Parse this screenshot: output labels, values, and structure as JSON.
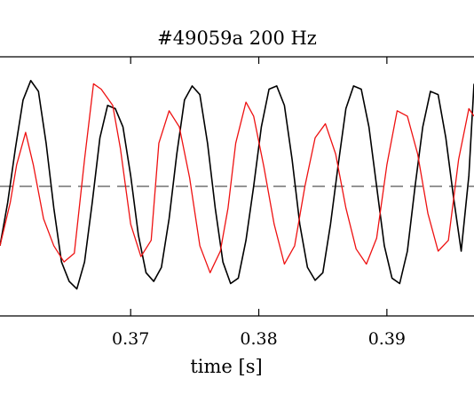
{
  "chart_data": {
    "type": "line",
    "title": "#49059a 200 Hz",
    "xlabel": "time [s]",
    "ylabel": "",
    "xlim": [
      0.3598,
      0.3968
    ],
    "ylim": [
      -1.2,
      1.2
    ],
    "xticks": [
      {
        "value": 0.37,
        "label": "0.37"
      },
      {
        "value": 0.38,
        "label": "0.38"
      },
      {
        "value": 0.39,
        "label": "0.39"
      }
    ],
    "reference_line": {
      "y": 0,
      "style": "dashed",
      "color": "#555555"
    },
    "series": [
      {
        "color": "#000000",
        "style": "solid",
        "x": [
          0.3598,
          0.3604,
          0.361,
          0.3616,
          0.3622,
          0.3628,
          0.3634,
          0.364,
          0.3646,
          0.3652,
          0.3658,
          0.3664,
          0.367,
          0.3676,
          0.3682,
          0.3688,
          0.3694,
          0.37,
          0.3706,
          0.3712,
          0.3718,
          0.3724,
          0.373,
          0.3736,
          0.3742,
          0.3748,
          0.3754,
          0.376,
          0.3766,
          0.3772,
          0.3778,
          0.3784,
          0.379,
          0.3796,
          0.3802,
          0.3808,
          0.3814,
          0.382,
          0.3826,
          0.3832,
          0.3838,
          0.3844,
          0.385,
          0.3856,
          0.3862,
          0.3868,
          0.3874,
          0.388,
          0.3886,
          0.3892,
          0.3898,
          0.3904,
          0.391,
          0.3916,
          0.3922,
          0.3928,
          0.3934,
          0.394,
          0.3946,
          0.3952,
          0.3958,
          0.3964,
          0.3968
        ],
        "y": [
          -0.55,
          -0.15,
          0.35,
          0.8,
          0.98,
          0.88,
          0.4,
          -0.2,
          -0.7,
          -0.88,
          -0.95,
          -0.7,
          -0.15,
          0.45,
          0.75,
          0.72,
          0.55,
          0.1,
          -0.45,
          -0.8,
          -0.88,
          -0.75,
          -0.3,
          0.3,
          0.8,
          0.93,
          0.85,
          0.4,
          -0.2,
          -0.7,
          -0.9,
          -0.85,
          -0.5,
          0.0,
          0.55,
          0.9,
          0.93,
          0.75,
          0.25,
          -0.35,
          -0.75,
          -0.87,
          -0.8,
          -0.35,
          0.2,
          0.72,
          0.93,
          0.9,
          0.55,
          0.0,
          -0.55,
          -0.85,
          -0.9,
          -0.6,
          0.0,
          0.55,
          0.88,
          0.85,
          0.45,
          -0.1,
          -0.6,
          0.1,
          0.95
        ]
      },
      {
        "color": "#ee1111",
        "style": "solid",
        "x": [
          0.3598,
          0.3606,
          0.3611,
          0.3618,
          0.3624,
          0.3632,
          0.364,
          0.3648,
          0.3656,
          0.3664,
          0.3671,
          0.3677,
          0.3686,
          0.3692,
          0.37,
          0.3708,
          0.3716,
          0.3722,
          0.373,
          0.3738,
          0.3746,
          0.3754,
          0.3762,
          0.377,
          0.3776,
          0.3782,
          0.379,
          0.3796,
          0.3804,
          0.3812,
          0.382,
          0.3828,
          0.3836,
          0.3844,
          0.3852,
          0.386,
          0.3868,
          0.3876,
          0.3884,
          0.3892,
          0.39,
          0.3908,
          0.3916,
          0.3924,
          0.3932,
          0.394,
          0.3948,
          0.3956,
          0.3964,
          0.3968
        ],
        "y": [
          -0.55,
          -0.15,
          0.2,
          0.5,
          0.2,
          -0.3,
          -0.55,
          -0.7,
          -0.62,
          0.25,
          0.95,
          0.9,
          0.75,
          0.35,
          -0.35,
          -0.65,
          -0.5,
          0.4,
          0.7,
          0.55,
          0.08,
          -0.55,
          -0.8,
          -0.6,
          -0.2,
          0.4,
          0.78,
          0.65,
          0.18,
          -0.35,
          -0.72,
          -0.55,
          0.0,
          0.45,
          0.58,
          0.3,
          -0.2,
          -0.58,
          -0.72,
          -0.48,
          0.2,
          0.7,
          0.65,
          0.3,
          -0.25,
          -0.6,
          -0.5,
          0.25,
          0.72,
          0.65
        ]
      }
    ]
  }
}
